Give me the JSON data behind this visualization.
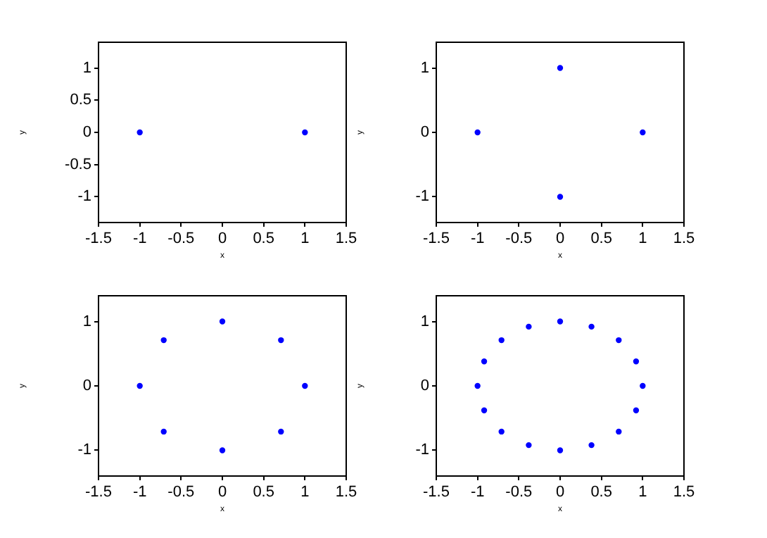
{
  "chart_data": [
    {
      "type": "scatter",
      "xlabel": "x",
      "ylabel": "y",
      "color": "#0000ff",
      "marker": "circle",
      "grid": false,
      "xlim": [
        -1.5,
        1.5
      ],
      "ylim": [
        -1.4,
        1.4
      ],
      "xticks": [
        -1.5,
        -1,
        -0.5,
        0,
        0.5,
        1,
        1.5
      ],
      "yticks": [
        -1,
        -0.5,
        0,
        0.5,
        1
      ],
      "x": [
        1,
        -1
      ],
      "values": [
        0,
        0
      ]
    },
    {
      "type": "scatter",
      "xlabel": "x",
      "ylabel": "y",
      "color": "#0000ff",
      "marker": "circle",
      "grid": false,
      "xlim": [
        -1.5,
        1.5
      ],
      "ylim": [
        -1.4,
        1.4
      ],
      "xticks": [
        -1.5,
        -1,
        -0.5,
        0,
        0.5,
        1,
        1.5
      ],
      "yticks": [
        -1,
        0,
        1
      ],
      "x": [
        1,
        0,
        -1,
        0
      ],
      "values": [
        0,
        1,
        0,
        -1
      ]
    },
    {
      "type": "scatter",
      "xlabel": "x",
      "ylabel": "y",
      "color": "#0000ff",
      "marker": "circle",
      "grid": false,
      "xlim": [
        -1.5,
        1.5
      ],
      "ylim": [
        -1.4,
        1.4
      ],
      "xticks": [
        -1.5,
        -1,
        -0.5,
        0,
        0.5,
        1,
        1.5
      ],
      "yticks": [
        -1,
        0,
        1
      ],
      "x": [
        1,
        0.71,
        0,
        -0.71,
        -1,
        -0.71,
        0,
        0.71
      ],
      "values": [
        0,
        0.71,
        1,
        0.71,
        0,
        -0.71,
        -1,
        -0.71
      ]
    },
    {
      "type": "scatter",
      "xlabel": "x",
      "ylabel": "y",
      "color": "#0000ff",
      "marker": "circle",
      "grid": false,
      "xlim": [
        -1.5,
        1.5
      ],
      "ylim": [
        -1.4,
        1.4
      ],
      "xticks": [
        -1.5,
        -1,
        -0.5,
        0,
        0.5,
        1,
        1.5
      ],
      "yticks": [
        -1,
        0,
        1
      ],
      "x": [
        1,
        0.92,
        0.71,
        0.38,
        0,
        -0.38,
        -0.71,
        -0.92,
        -1,
        -0.92,
        -0.71,
        -0.38,
        0,
        0.38,
        0.71,
        0.92
      ],
      "values": [
        0,
        0.38,
        0.71,
        0.92,
        1,
        0.92,
        0.71,
        0.38,
        0,
        -0.38,
        -0.71,
        -0.92,
        -1,
        -0.92,
        -0.71,
        -0.38
      ]
    }
  ]
}
